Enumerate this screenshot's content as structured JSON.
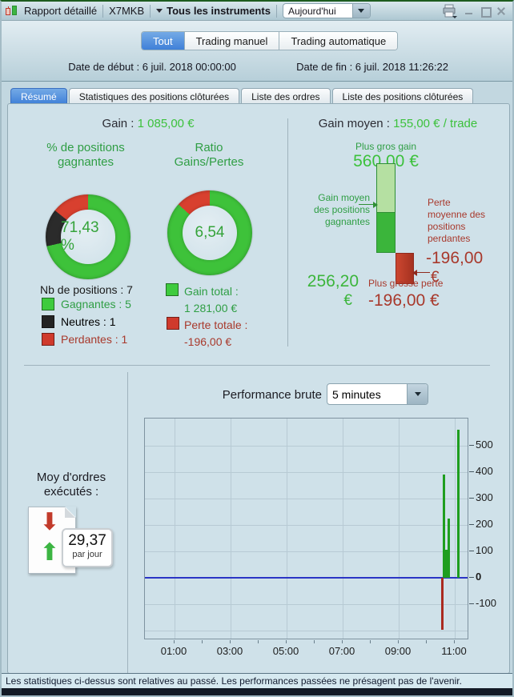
{
  "window": {
    "title": "Rapport détaillé",
    "account": "X7MKB",
    "instruments_label": "Tous les instruments",
    "period_value": "Aujourd'hui"
  },
  "header": {
    "mode_tabs": [
      {
        "label": "Tout",
        "selected": true
      },
      {
        "label": "Trading manuel",
        "selected": false
      },
      {
        "label": "Trading automatique",
        "selected": false
      }
    ],
    "date_start": "Date de début : 6 juil. 2018 00:00:00",
    "date_end": "Date de fin : 6 juil. 2018 11:26:22"
  },
  "tabs": [
    {
      "label": "Résumé",
      "selected": true
    },
    {
      "label": "Statistiques des positions clôturées",
      "selected": false
    },
    {
      "label": "Liste des ordres",
      "selected": false
    },
    {
      "label": "Liste des positions clôturées",
      "selected": false
    }
  ],
  "summary": {
    "gain_label": "Gain :",
    "gain_value": "1 085,00 €",
    "winning_pct_title": "% de positions gagnantes",
    "ratio_title": "Ratio Gains/Pertes",
    "winning_pct_value": "71,43 %",
    "ratio_value": "6,54",
    "positions_count_label": "Nb de positions : 7",
    "legend": [
      {
        "label": "Gagnantes : 5",
        "color": "#3ecb3e",
        "text_color": "#2f9e44"
      },
      {
        "label": "Neutres : 1",
        "color": "#232323",
        "text_color": "#1a1a1a"
      },
      {
        "label": "Perdantes : 1",
        "color": "#cf3a2c",
        "text_color": "#a8392c"
      }
    ],
    "gain_total_label": "Gain total :",
    "gain_total_value": "1 281,00 €",
    "loss_total_label": "Perte totale :",
    "loss_total_value": "-196,00 €"
  },
  "average": {
    "title_label": "Gain moyen :",
    "title_value": "155,00 € / trade",
    "biggest_gain_label": "Plus gros gain",
    "biggest_gain_value": "560,00 €",
    "avg_win_lines": [
      "Gain moyen",
      "des positions",
      "gagnantes"
    ],
    "avg_win_value": "256,20",
    "avg_win_currency": "€",
    "avg_loss_lines": [
      "Perte",
      "moyenne des",
      "positions",
      "perdantes"
    ],
    "avg_loss_value": "-196,00",
    "avg_loss_currency": "€",
    "biggest_loss_label": "Plus grosse perte",
    "biggest_loss_value": "-196,00 €"
  },
  "performance": {
    "title": "Performance brute",
    "interval_value": "5 minutes",
    "orders_avg_label_lines": [
      "Moy d'ordres",
      "exécutés :"
    ],
    "orders_avg_value": "29,37",
    "orders_avg_unit": "par jour",
    "icons": {
      "down_arrow": "⬇",
      "up_arrow": "⬆"
    }
  },
  "footer": {
    "disclaimer": "Les statistiques ci-dessus sont relatives au passé. Les performances passées ne présagent pas de l'avenir."
  },
  "chart_data": [
    {
      "type": "pie",
      "subtype": "donut",
      "title": "% de positions gagnantes",
      "center_label": "71,43 %",
      "slices": [
        {
          "label": "Gagnantes",
          "count": 5,
          "pct": 71.43,
          "color": "#3ec23a"
        },
        {
          "label": "Neutres",
          "count": 1,
          "pct": 14.29,
          "color": "#2b2b2b"
        },
        {
          "label": "Perdantes",
          "count": 1,
          "pct": 14.28,
          "color": "#d8402f"
        }
      ]
    },
    {
      "type": "pie",
      "subtype": "donut",
      "title": "Ratio Gains/Pertes",
      "center_label": "6,54",
      "slices": [
        {
          "label": "Gains",
          "pct": 86.74,
          "color": "#3ec23a"
        },
        {
          "label": "Pertes",
          "pct": 13.26,
          "color": "#d8402f"
        }
      ]
    },
    {
      "type": "bar",
      "subtype": "waterfall-summary",
      "title": "Gain moyen : 155,00 € / trade",
      "max_gain": 560.0,
      "avg_gain": 256.2,
      "avg_loss": -196.0,
      "max_loss": -196.0,
      "colors": {
        "gain_light": "#b5e0a2",
        "gain_solid": "#3bb53b",
        "loss": "#c03a28"
      }
    },
    {
      "type": "bar",
      "title": "Performance brute (5 minutes)",
      "xlabel_ticks": [
        "01:00",
        "03:00",
        "05:00",
        "07:00",
        "09:00",
        "11:00"
      ],
      "yticks": [
        500,
        400,
        300,
        200,
        100,
        0,
        -100
      ],
      "ygrid": [
        500,
        400,
        300,
        200,
        100,
        -100,
        -200
      ],
      "ylim": [
        -236,
        603
      ],
      "points": [
        {
          "time": "10:30",
          "value": -196
        },
        {
          "time": "10:35",
          "value": 390
        },
        {
          "time": "10:40",
          "value": 105
        },
        {
          "time": "10:45",
          "value": 225
        },
        {
          "time": "11:05",
          "value": 560
        }
      ],
      "zero_line_color": "#2b35c5",
      "bar_up_color": "#1f9e1f",
      "bar_down_color": "#aa2a20"
    }
  ]
}
